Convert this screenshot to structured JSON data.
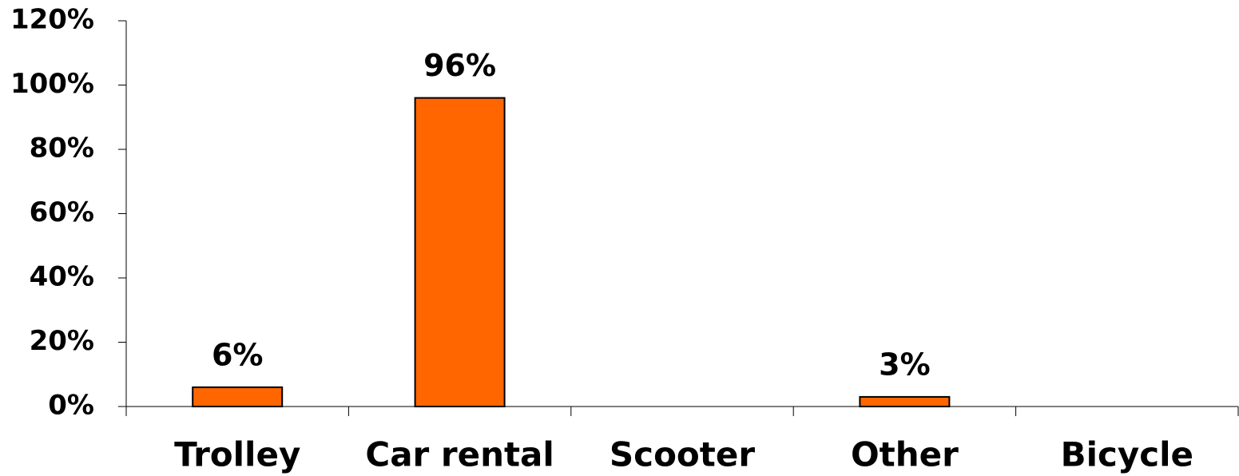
{
  "chart_data": {
    "type": "bar",
    "categories": [
      "Trolley",
      "Car rental",
      "Scooter",
      "Other",
      "Bicycle"
    ],
    "values": [
      6,
      96,
      0,
      3,
      0
    ],
    "value_labels": [
      "6%",
      "96%",
      null,
      "3%",
      null
    ],
    "color": "#ff6600",
    "ylim": [
      0,
      120
    ],
    "yticks": [
      {
        "value": 0,
        "label": "0%"
      },
      {
        "value": 20,
        "label": "20%"
      },
      {
        "value": 40,
        "label": "40%"
      },
      {
        "value": 60,
        "label": "60%"
      },
      {
        "value": 80,
        "label": "80%"
      },
      {
        "value": 100,
        "label": "100%"
      },
      {
        "value": 120,
        "label": "120%"
      }
    ],
    "grid": false
  }
}
